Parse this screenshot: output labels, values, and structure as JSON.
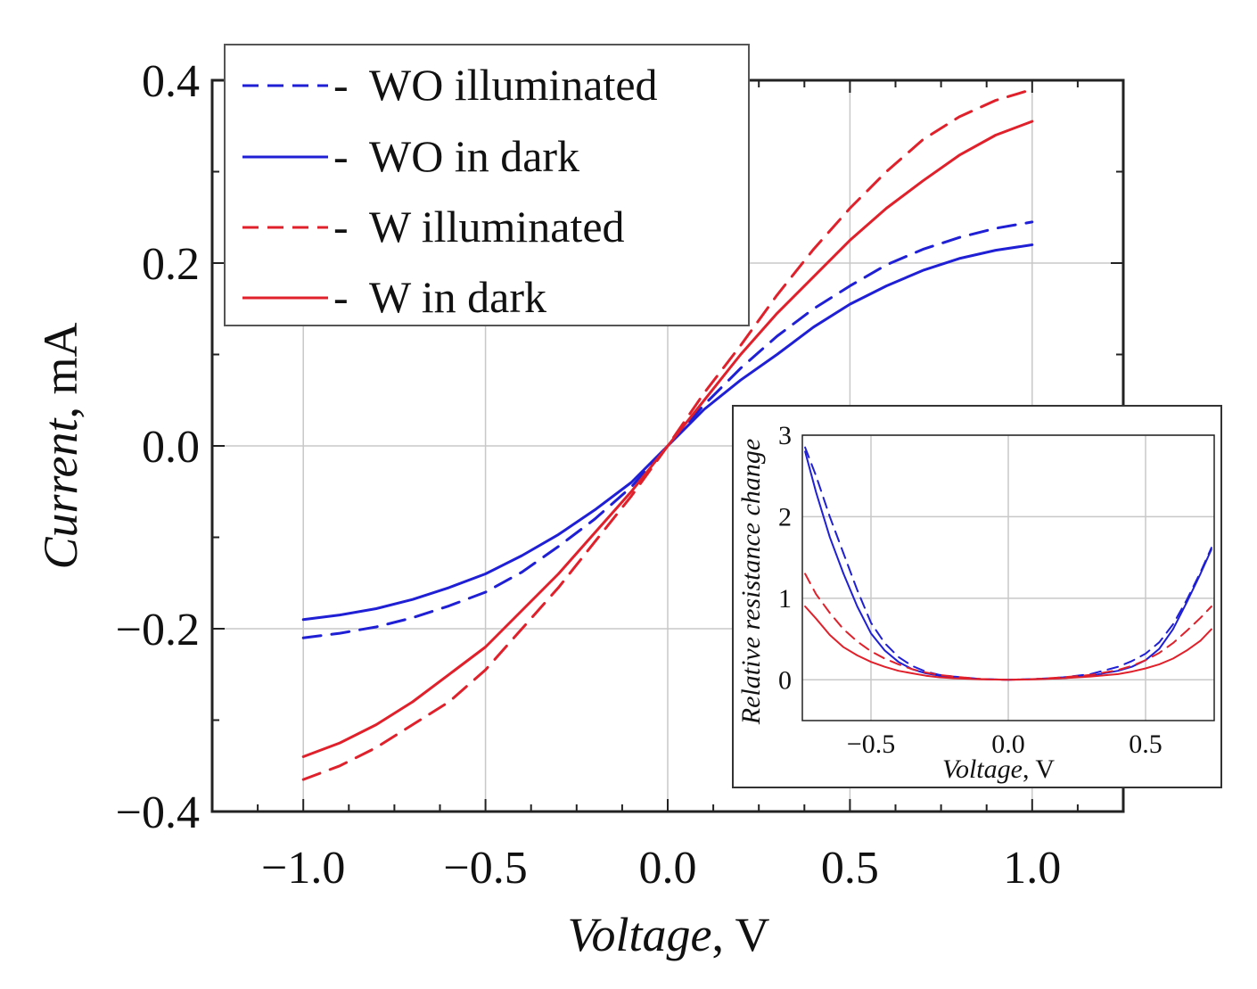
{
  "main_chart": {
    "xlabel_italic": "Voltage",
    "xlabel_unit": ", V",
    "ylabel_italic": "Current",
    "ylabel_unit": ", mA",
    "x_tick_labels": [
      "−1.0",
      "−0.5",
      "0.0",
      "0.5",
      "1.0"
    ],
    "y_tick_labels": [
      "0.4",
      "0.2",
      "0.0",
      "−0.2",
      "−0.4"
    ],
    "legend": [
      {
        "label": "WO illuminated",
        "marker_suffix": "-"
      },
      {
        "label": "WO in dark",
        "marker_suffix": "-"
      },
      {
        "label": "W illuminated",
        "marker_suffix": "-"
      },
      {
        "label": "W in dark",
        "marker_suffix": "-"
      }
    ]
  },
  "inset_chart": {
    "xlabel_italic": "Voltage",
    "xlabel_unit": ", V",
    "ylabel_italic": "Relative resistance change",
    "x_tick_labels": [
      "−0.5",
      "0.0",
      "0.5"
    ],
    "y_tick_labels": [
      "3",
      "2",
      "1",
      "0"
    ]
  },
  "colors": {
    "blue": "#1f1fd6",
    "red": "#e0202a",
    "grid": "#c8c8c8",
    "axis": "#222222"
  },
  "chart_data": [
    {
      "type": "line",
      "xlabel": "Voltage, V",
      "ylabel": "Current, mA",
      "xlim": [
        -1.25,
        1.25
      ],
      "ylim": [
        -0.4,
        0.4
      ],
      "x_ticks": [
        -1.0,
        -0.5,
        0.0,
        0.5,
        1.0
      ],
      "y_ticks": [
        -0.4,
        -0.2,
        0.0,
        0.2,
        0.4
      ],
      "grid": true,
      "legend_position": "top-left",
      "series": [
        {
          "name": "WO illuminated",
          "color": "blue",
          "dash": "dashed",
          "x": [
            -1.0,
            -0.9,
            -0.8,
            -0.7,
            -0.6,
            -0.5,
            -0.4,
            -0.3,
            -0.2,
            -0.1,
            0.0,
            0.1,
            0.2,
            0.3,
            0.4,
            0.5,
            0.6,
            0.7,
            0.8,
            0.9,
            1.0
          ],
          "y": [
            -0.21,
            -0.205,
            -0.198,
            -0.188,
            -0.175,
            -0.16,
            -0.138,
            -0.11,
            -0.08,
            -0.045,
            0.0,
            0.045,
            0.085,
            0.12,
            0.15,
            0.175,
            0.198,
            0.215,
            0.228,
            0.238,
            0.245
          ]
        },
        {
          "name": "WO in dark",
          "color": "blue",
          "dash": "solid",
          "x": [
            -1.0,
            -0.9,
            -0.8,
            -0.7,
            -0.6,
            -0.5,
            -0.4,
            -0.3,
            -0.2,
            -0.1,
            0.0,
            0.1,
            0.2,
            0.3,
            0.4,
            0.5,
            0.6,
            0.7,
            0.8,
            0.9,
            1.0
          ],
          "y": [
            -0.19,
            -0.185,
            -0.178,
            -0.168,
            -0.155,
            -0.14,
            -0.12,
            -0.097,
            -0.07,
            -0.04,
            0.0,
            0.04,
            0.072,
            0.1,
            0.13,
            0.155,
            0.175,
            0.192,
            0.205,
            0.214,
            0.22
          ]
        },
        {
          "name": "W illuminated",
          "color": "red",
          "dash": "dashed",
          "x": [
            -1.0,
            -0.9,
            -0.8,
            -0.7,
            -0.6,
            -0.5,
            -0.4,
            -0.3,
            -0.2,
            -0.1,
            0.0,
            0.1,
            0.2,
            0.3,
            0.4,
            0.5,
            0.6,
            0.7,
            0.8,
            0.9,
            1.0
          ],
          "y": [
            -0.365,
            -0.35,
            -0.33,
            -0.305,
            -0.28,
            -0.245,
            -0.2,
            -0.155,
            -0.105,
            -0.055,
            0.0,
            0.058,
            0.11,
            0.165,
            0.215,
            0.26,
            0.3,
            0.335,
            0.36,
            0.378,
            0.39
          ]
        },
        {
          "name": "W in dark",
          "color": "red",
          "dash": "solid",
          "x": [
            -1.0,
            -0.9,
            -0.8,
            -0.7,
            -0.6,
            -0.5,
            -0.4,
            -0.3,
            -0.2,
            -0.1,
            0.0,
            0.1,
            0.2,
            0.3,
            0.4,
            0.5,
            0.6,
            0.7,
            0.8,
            0.9,
            1.0
          ],
          "y": [
            -0.34,
            -0.325,
            -0.305,
            -0.28,
            -0.25,
            -0.22,
            -0.18,
            -0.14,
            -0.095,
            -0.05,
            0.0,
            0.05,
            0.1,
            0.145,
            0.185,
            0.225,
            0.26,
            0.29,
            0.318,
            0.34,
            0.355
          ]
        }
      ]
    },
    {
      "type": "line",
      "xlabel": "Voltage, V",
      "ylabel": "Relative resistance change",
      "xlim": [
        -0.75,
        0.75
      ],
      "ylim": [
        -0.5,
        3.0
      ],
      "x_ticks": [
        -0.5,
        0.0,
        0.5
      ],
      "y_ticks": [
        0,
        1,
        2,
        3
      ],
      "grid": true,
      "series": [
        {
          "name": "WO illuminated",
          "color": "blue",
          "dash": "dashed",
          "x": [
            -0.74,
            -0.7,
            -0.65,
            -0.6,
            -0.55,
            -0.5,
            -0.45,
            -0.4,
            -0.35,
            -0.3,
            -0.25,
            -0.2,
            -0.1,
            0.0,
            0.1,
            0.2,
            0.3,
            0.4,
            0.45,
            0.5,
            0.55,
            0.6,
            0.65,
            0.7,
            0.74
          ],
          "y": [
            2.85,
            2.5,
            2.0,
            1.55,
            1.1,
            0.7,
            0.45,
            0.28,
            0.17,
            0.1,
            0.06,
            0.04,
            0.01,
            0.0,
            0.01,
            0.03,
            0.07,
            0.16,
            0.23,
            0.32,
            0.46,
            0.68,
            0.98,
            1.32,
            1.62
          ]
        },
        {
          "name": "WO in dark",
          "color": "blue",
          "dash": "solid",
          "x": [
            -0.74,
            -0.7,
            -0.65,
            -0.6,
            -0.55,
            -0.5,
            -0.45,
            -0.4,
            -0.35,
            -0.3,
            -0.25,
            -0.2,
            -0.1,
            0.0,
            0.1,
            0.2,
            0.3,
            0.4,
            0.45,
            0.5,
            0.55,
            0.6,
            0.65,
            0.7,
            0.74
          ],
          "y": [
            2.8,
            2.3,
            1.75,
            1.3,
            0.9,
            0.57,
            0.36,
            0.22,
            0.13,
            0.08,
            0.05,
            0.03,
            0.01,
            0.0,
            0.01,
            0.02,
            0.05,
            0.11,
            0.16,
            0.24,
            0.38,
            0.62,
            0.95,
            1.3,
            1.6
          ]
        },
        {
          "name": "W illuminated",
          "color": "red",
          "dash": "dashed",
          "x": [
            -0.74,
            -0.7,
            -0.65,
            -0.6,
            -0.55,
            -0.5,
            -0.45,
            -0.4,
            -0.35,
            -0.3,
            -0.25,
            -0.2,
            -0.1,
            0.0,
            0.1,
            0.2,
            0.3,
            0.4,
            0.45,
            0.5,
            0.55,
            0.6,
            0.65,
            0.7,
            0.74
          ],
          "y": [
            1.3,
            1.05,
            0.82,
            0.62,
            0.47,
            0.35,
            0.26,
            0.19,
            0.13,
            0.09,
            0.06,
            0.04,
            0.01,
            0.0,
            0.01,
            0.03,
            0.06,
            0.12,
            0.17,
            0.24,
            0.33,
            0.45,
            0.6,
            0.76,
            0.9
          ]
        },
        {
          "name": "W in dark",
          "color": "red",
          "dash": "solid",
          "x": [
            -0.74,
            -0.7,
            -0.65,
            -0.6,
            -0.55,
            -0.5,
            -0.45,
            -0.4,
            -0.35,
            -0.3,
            -0.25,
            -0.2,
            -0.1,
            0.0,
            0.1,
            0.2,
            0.3,
            0.4,
            0.45,
            0.5,
            0.55,
            0.6,
            0.65,
            0.7,
            0.74
          ],
          "y": [
            0.9,
            0.75,
            0.55,
            0.4,
            0.3,
            0.22,
            0.16,
            0.11,
            0.08,
            0.05,
            0.03,
            0.02,
            0.005,
            0.0,
            0.005,
            0.02,
            0.04,
            0.07,
            0.1,
            0.14,
            0.19,
            0.26,
            0.36,
            0.48,
            0.62
          ]
        }
      ]
    }
  ]
}
